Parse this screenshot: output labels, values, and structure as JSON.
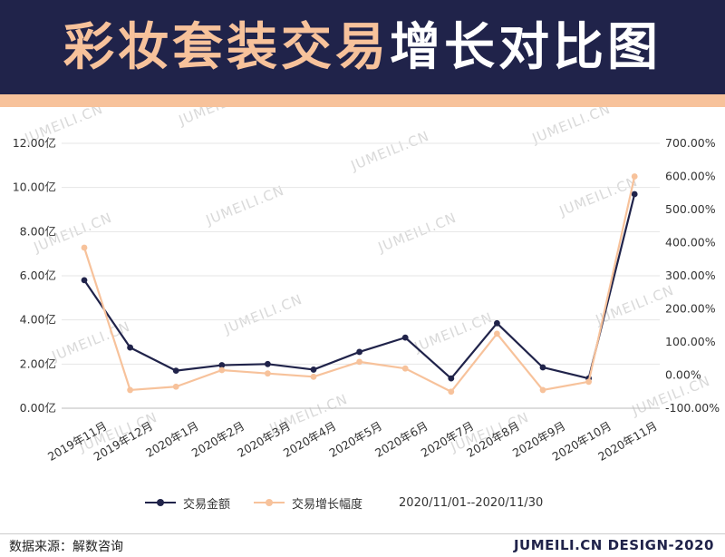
{
  "header": {
    "title_part1": "彩妆套装交易",
    "title_part2": "增长对比图"
  },
  "colors": {
    "header_bg": "#20234a",
    "accent": "#f7c29b",
    "series_amount": "#20234a",
    "series_growth": "#f7c29b"
  },
  "watermark_text": "JUMEILI.CN",
  "legend": {
    "items": [
      {
        "label": "交易金额",
        "color": "#20234a"
      },
      {
        "label": "交易增长幅度",
        "color": "#f7c29b"
      }
    ],
    "date_range": "2020/11/01--2020/11/30"
  },
  "footer": {
    "source": "数据来源：解数咨询",
    "brand": "JUMEILI.CN DESIGN-2020"
  },
  "chart_data": {
    "type": "line",
    "categories": [
      "2019年11月",
      "2019年12月",
      "2020年1月",
      "2020年2月",
      "2020年3月",
      "2020年4月",
      "2020年5月",
      "2020年6月",
      "2020年7月",
      "2020年8月",
      "2020年9月",
      "2020年10月",
      "2020年11月"
    ],
    "series": [
      {
        "name": "交易金额",
        "axis": "left",
        "color": "#20234a",
        "values": [
          5.8,
          2.75,
          1.7,
          1.95,
          2.0,
          1.75,
          2.55,
          3.2,
          1.35,
          3.85,
          1.85,
          1.35,
          9.7
        ]
      },
      {
        "name": "交易增长幅度",
        "axis": "right",
        "color": "#f7c29b",
        "values": [
          385,
          -45,
          -35,
          15,
          5,
          -5,
          40,
          20,
          -50,
          125,
          -45,
          -20,
          600
        ]
      }
    ],
    "y_left": {
      "ylim": [
        0,
        12
      ],
      "ticks": [
        0,
        2,
        4,
        6,
        8,
        10,
        12
      ],
      "tick_labels": [
        "0.00亿",
        "2.00亿",
        "4.00亿",
        "6.00亿",
        "8.00亿",
        "10.00亿",
        "12.00亿"
      ]
    },
    "y_right": {
      "ylim": [
        -100,
        700
      ],
      "ticks": [
        -100,
        0,
        100,
        200,
        300,
        400,
        500,
        600,
        700
      ],
      "tick_labels": [
        "-100.00%",
        "0.00%",
        "100.00%",
        "200.00%",
        "300.00%",
        "400.00%",
        "500.00%",
        "600.00%",
        "700.00%"
      ]
    },
    "grid": true,
    "legend_position": "bottom",
    "xlabel": "",
    "ylabel": ""
  }
}
